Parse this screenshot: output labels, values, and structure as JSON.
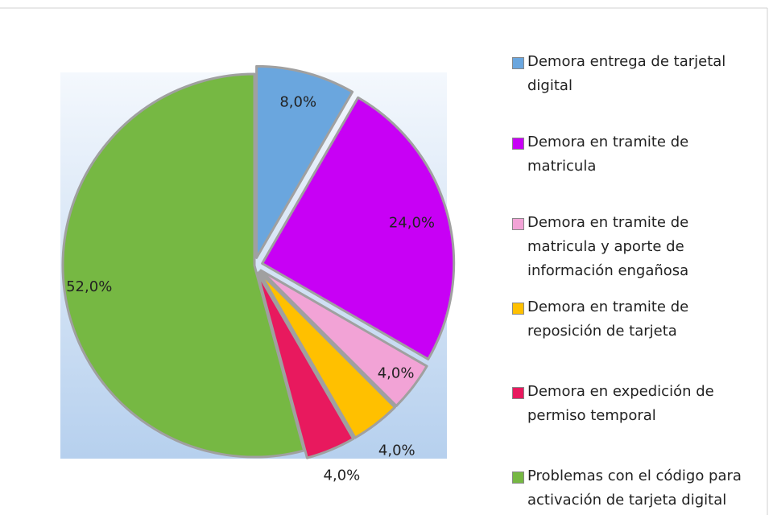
{
  "chart_data": {
    "type": "pie",
    "categories": [
      "Demora entrega de tarjetal digital",
      "Demora en tramite de matricula",
      "Demora en tramite de matricula y aporte de información engañosa",
      "Demora en tramite de reposición de tarjeta",
      "Demora en expedición de permiso temporal",
      "Problemas con el código para activación de tarjeta digital"
    ],
    "values": [
      8,
      24,
      4,
      4,
      4,
      52
    ],
    "value_labels": [
      "8,0%",
      "24,0%",
      "4,0%",
      "4,0%",
      "4,0%",
      "52,0%"
    ],
    "colors": [
      "#6aa6de",
      "#c800f5",
      "#f2a3d6",
      "#ffc000",
      "#e8195e",
      "#76b843"
    ],
    "legend": "right"
  }
}
